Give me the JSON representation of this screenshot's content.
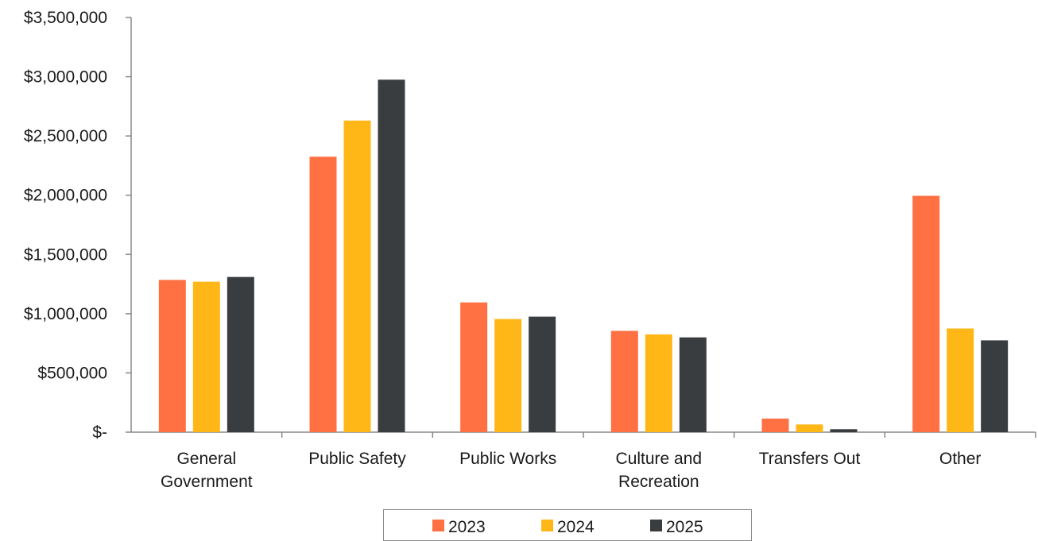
{
  "chart_data": {
    "type": "bar",
    "title": "",
    "xlabel": "",
    "ylabel": "",
    "ylim": [
      0,
      3500000
    ],
    "yticks": [
      0,
      500000,
      1000000,
      1500000,
      2000000,
      2500000,
      3000000,
      3500000
    ],
    "ytick_labels": [
      "$-",
      "$500,000",
      "$1,000,000",
      "$1,500,000",
      "$2,000,000",
      "$2,500,000",
      "$3,000,000",
      "$3,500,000"
    ],
    "grid": false,
    "legend_position": "bottom-center",
    "categories": [
      [
        "General",
        "Government"
      ],
      [
        "Public Safety"
      ],
      [
        "Public Works"
      ],
      [
        "Culture and",
        "Recreation"
      ],
      [
        "Transfers Out"
      ],
      [
        "Other"
      ]
    ],
    "series": [
      {
        "name": "2023",
        "color": "#FF7043",
        "values": [
          1285000,
          2325000,
          1095000,
          855000,
          115000,
          1995000
        ]
      },
      {
        "name": "2024",
        "color": "#FFB718",
        "values": [
          1270000,
          2630000,
          955000,
          825000,
          65000,
          875000
        ]
      },
      {
        "name": "2025",
        "color": "#3A3D40",
        "values": [
          1310000,
          2975000,
          975000,
          800000,
          25000,
          775000
        ]
      }
    ]
  }
}
